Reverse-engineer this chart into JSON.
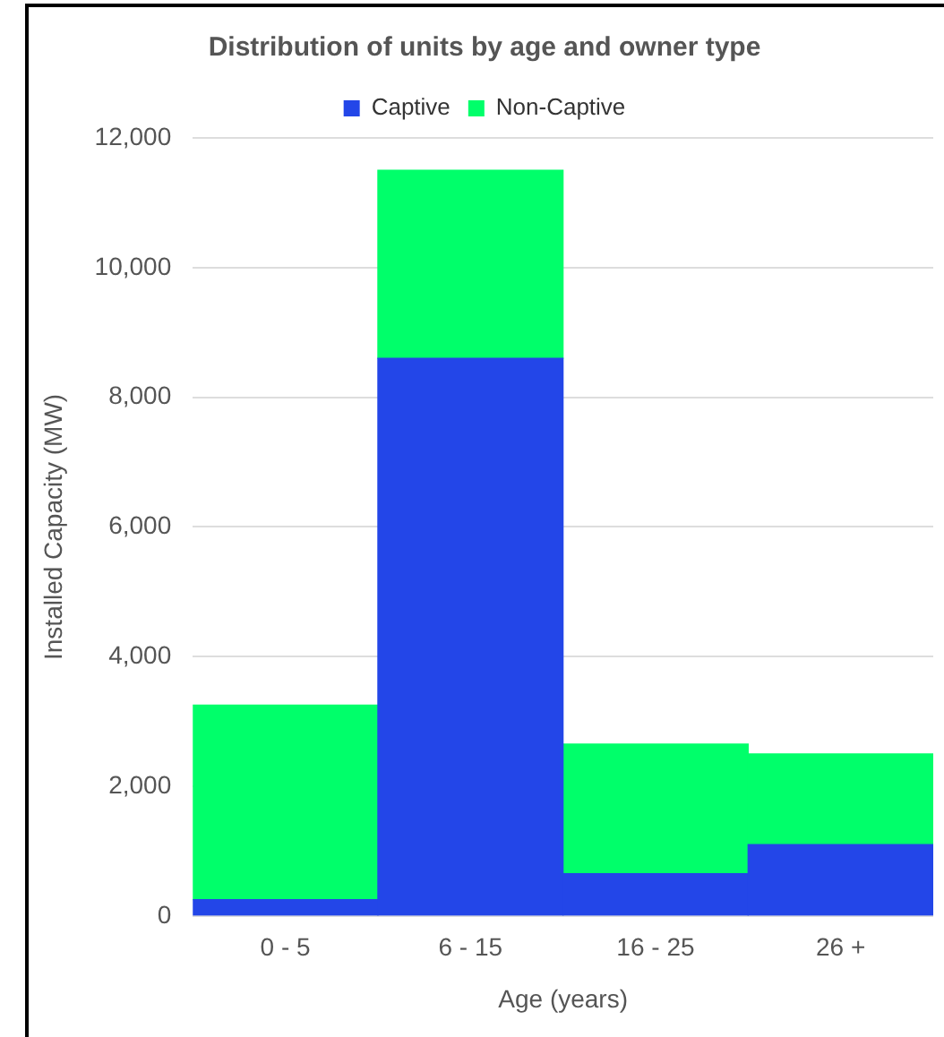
{
  "chart_data": {
    "type": "bar",
    "title": "Distribution of units by age and owner type",
    "xlabel": "Age (years)",
    "ylabel": "Installed Capacity (MW)",
    "categories": [
      "0 - 5",
      "6 - 15",
      "16 - 25",
      "26 +"
    ],
    "series": [
      {
        "name": "Captive",
        "color": "#2346e8",
        "values": [
          250,
          8600,
          650,
          1100
        ]
      },
      {
        "name": "Non-Captive",
        "color": "#00ff6a",
        "values": [
          3000,
          2900,
          2000,
          1400
        ]
      }
    ],
    "stacked": true,
    "ylim": [
      0,
      12000
    ],
    "yticks": [
      {
        "value": 0,
        "label": "0"
      },
      {
        "value": 2000,
        "label": "2,000"
      },
      {
        "value": 4000,
        "label": "4,000"
      },
      {
        "value": 6000,
        "label": "6,000"
      },
      {
        "value": 8000,
        "label": "8,000"
      },
      {
        "value": 10000,
        "label": "10,000"
      },
      {
        "value": 12000,
        "label": "12,000"
      }
    ],
    "grid": "y",
    "legend": "top"
  }
}
